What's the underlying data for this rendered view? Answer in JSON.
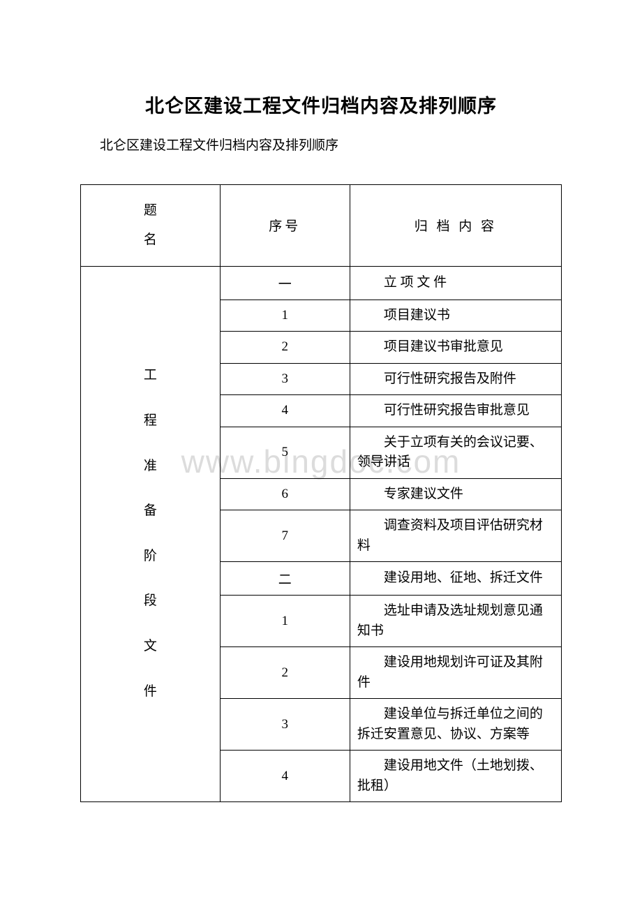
{
  "document": {
    "title": "北仑区建设工程文件归档内容及排列顺序",
    "subtitle": "北仑区建设工程文件归档内容及排列顺序",
    "watermark": "www.bingdoc.com",
    "table": {
      "headers": {
        "heading": "题名",
        "sequence": "序号",
        "content": "归 档 内 容"
      },
      "sectionLabel": "工程准备阶段文件",
      "rows": [
        {
          "seq": "一",
          "seqType": "cn",
          "content": "立 项 文 件"
        },
        {
          "seq": "1",
          "seqType": "num",
          "content": "项目建议书"
        },
        {
          "seq": "2",
          "seqType": "num",
          "content": "项目建议书审批意见"
        },
        {
          "seq": "3",
          "seqType": "num",
          "content": "可行性研究报告及附件"
        },
        {
          "seq": "4",
          "seqType": "num",
          "content": "可行性研究报告审批意见"
        },
        {
          "seq": "5",
          "seqType": "num",
          "content": "关于立项有关的会议记要、领导讲话"
        },
        {
          "seq": "6",
          "seqType": "num",
          "content": "专家建议文件"
        },
        {
          "seq": "7",
          "seqType": "num",
          "content": "调查资料及项目评估研究材料"
        },
        {
          "seq": "二",
          "seqType": "cn",
          "content": "建设用地、征地、拆迁文件"
        },
        {
          "seq": "1",
          "seqType": "num",
          "content": "选址申请及选址规划意见通知书"
        },
        {
          "seq": "2",
          "seqType": "num",
          "content": "建设用地规划许可证及其附件"
        },
        {
          "seq": "3",
          "seqType": "num",
          "content": "建设单位与拆迁单位之间的拆迁安置意见、协议、方案等"
        },
        {
          "seq": "4",
          "seqType": "num",
          "content": "建设用地文件（土地划拨、批租）"
        }
      ]
    },
    "colors": {
      "background": "#ffffff",
      "border": "#000000",
      "text": "#000000",
      "watermark": "#dcdcdc"
    },
    "typography": {
      "titleFontSize": 27,
      "subtitleFontSize": 19,
      "bodyFontSize": 19,
      "watermarkFontSize": 46,
      "fontFamily": "SimSun"
    }
  }
}
